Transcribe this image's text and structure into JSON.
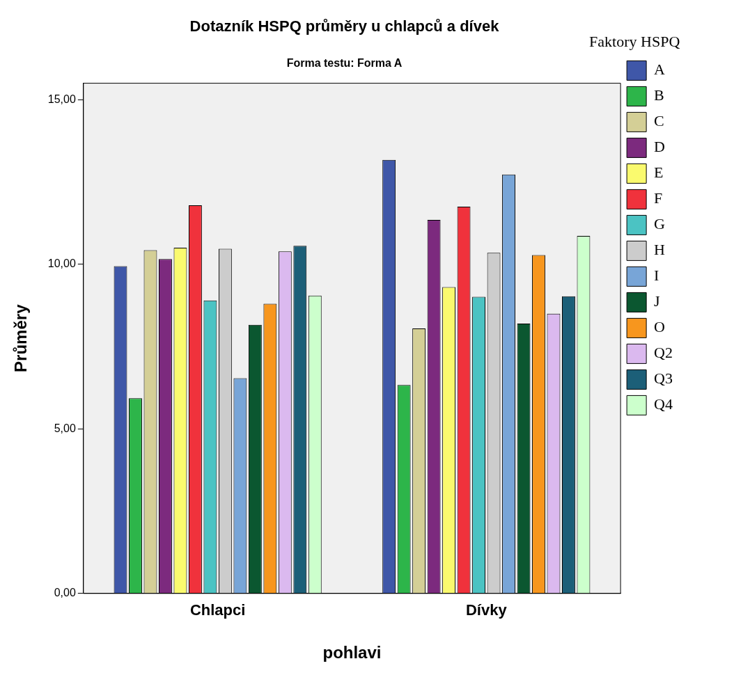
{
  "chart_data": {
    "type": "bar",
    "title": "Dotazník HSPQ průměry u chlapců a dívek",
    "subtitle": "Forma testu: Forma A",
    "xlabel": "pohlavi",
    "ylabel": "Průměry",
    "legend_title": "Faktory HSPQ",
    "categories": [
      "Chlapci",
      "Dívky"
    ],
    "series": [
      {
        "name": "A",
        "color": "#3f57a8",
        "values": [
          9.94,
          13.17
        ]
      },
      {
        "name": "B",
        "color": "#2db54a",
        "values": [
          5.93,
          6.33
        ]
      },
      {
        "name": "C",
        "color": "#d4cf96",
        "values": [
          10.43,
          8.05
        ]
      },
      {
        "name": "D",
        "color": "#7c2a7e",
        "values": [
          10.16,
          11.35
        ]
      },
      {
        "name": "E",
        "color": "#fafa6e",
        "values": [
          10.5,
          9.31
        ]
      },
      {
        "name": "F",
        "color": "#f0323c",
        "values": [
          11.79,
          11.75
        ]
      },
      {
        "name": "G",
        "color": "#4bc3c3",
        "values": [
          8.9,
          9.01
        ]
      },
      {
        "name": "H",
        "color": "#cccccc",
        "values": [
          10.47,
          10.35
        ]
      },
      {
        "name": "I",
        "color": "#78a5d7",
        "values": [
          6.54,
          12.73
        ]
      },
      {
        "name": "J",
        "color": "#0b5730",
        "values": [
          8.16,
          8.2
        ]
      },
      {
        "name": "O",
        "color": "#f7961e",
        "values": [
          8.8,
          10.28
        ]
      },
      {
        "name": "Q2",
        "color": "#dbb9ef",
        "values": [
          10.39,
          8.5
        ]
      },
      {
        "name": "Q3",
        "color": "#1c5f78",
        "values": [
          10.56,
          9.03
        ]
      },
      {
        "name": "Q4",
        "color": "#ccffcc",
        "values": [
          9.05,
          10.86
        ]
      }
    ],
    "ylim": [
      0,
      15.5
    ],
    "yticks": [
      {
        "value": 0,
        "label": "0,00"
      },
      {
        "value": 5,
        "label": "5,00"
      },
      {
        "value": 10,
        "label": "10,00"
      },
      {
        "value": 15,
        "label": "15,00"
      }
    ],
    "grid": false,
    "legend": "right"
  }
}
